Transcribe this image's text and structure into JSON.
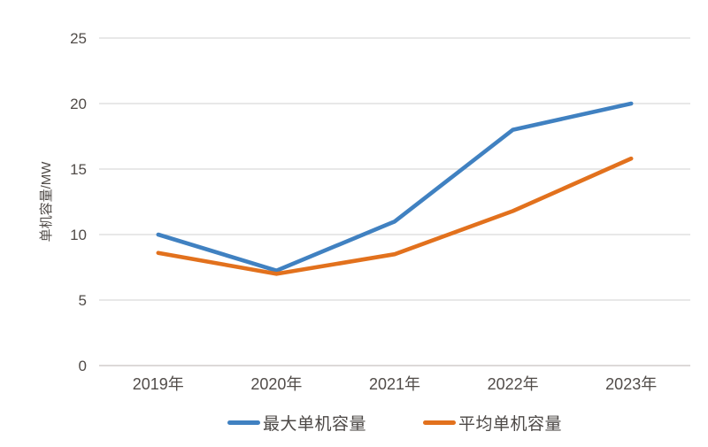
{
  "chart_data": {
    "type": "line",
    "title": "",
    "xlabel": "",
    "ylabel": "单机容量/MW",
    "categories": [
      "2019年",
      "2020年",
      "2021年",
      "2022年",
      "2023年"
    ],
    "series": [
      {
        "name": "最大单机容量",
        "color": "#4081C1",
        "values": [
          10,
          7.25,
          11,
          18,
          20
        ]
      },
      {
        "name": "平均单机容量",
        "color": "#E2711D",
        "values": [
          8.6,
          7,
          8.5,
          11.8,
          15.8
        ]
      }
    ],
    "y_ticks": [
      0,
      5,
      10,
      15,
      20,
      25
    ],
    "ylim": [
      0,
      25
    ],
    "grid": "horizontal",
    "legend_position": "bottom",
    "colors": {
      "gridline": "#d9d9d9",
      "axis_line": "#c6c2c0",
      "tick_text": "#514c49",
      "background": "#ffffff"
    }
  }
}
